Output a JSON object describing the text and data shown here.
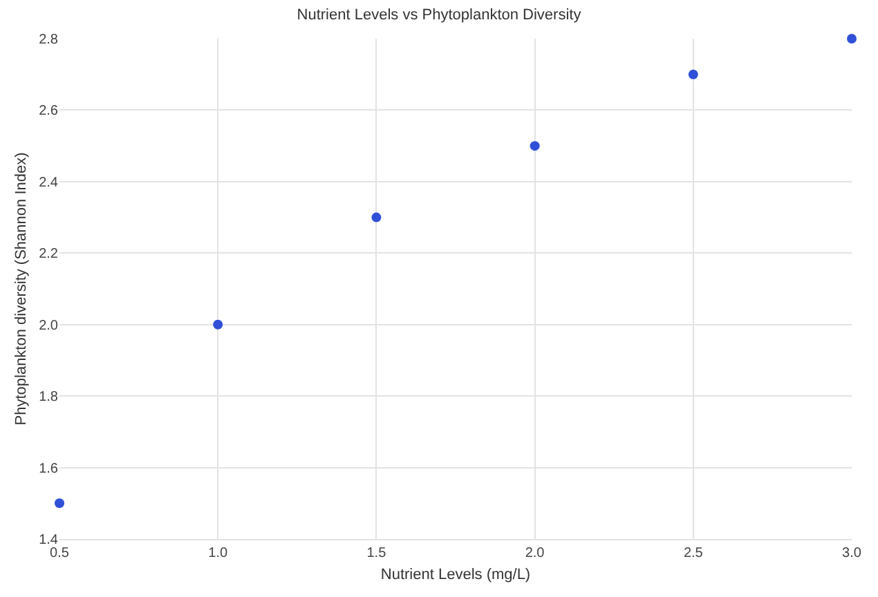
{
  "chart_data": {
    "type": "scatter",
    "title": "Nutrient Levels vs Phytoplankton Diversity",
    "xlabel": "Nutrient Levels (mg/L)",
    "ylabel": "Phytoplankton diversity (Shannon Index)",
    "x": [
      0.5,
      1.0,
      1.5,
      2.0,
      2.5,
      3.0
    ],
    "values": [
      1.5,
      2.0,
      2.3,
      2.5,
      2.7,
      2.8
    ],
    "color": "#3050d8",
    "xlim": [
      0.5,
      3.0
    ],
    "xticks": [
      0.5,
      {
        "value": 1,
        "label": "1.0"
      },
      1.5,
      {
        "value": 2,
        "label": "2.0"
      },
      2.5,
      {
        "value": 3,
        "label": "3.0"
      }
    ],
    "ylim": [
      1.4,
      2.8
    ],
    "yticks": [
      1.4,
      1.6,
      1.8,
      {
        "value": 2,
        "label": "2.0"
      },
      2.2,
      2.4,
      2.6,
      2.8
    ],
    "grid": true,
    "marker": "circle"
  }
}
